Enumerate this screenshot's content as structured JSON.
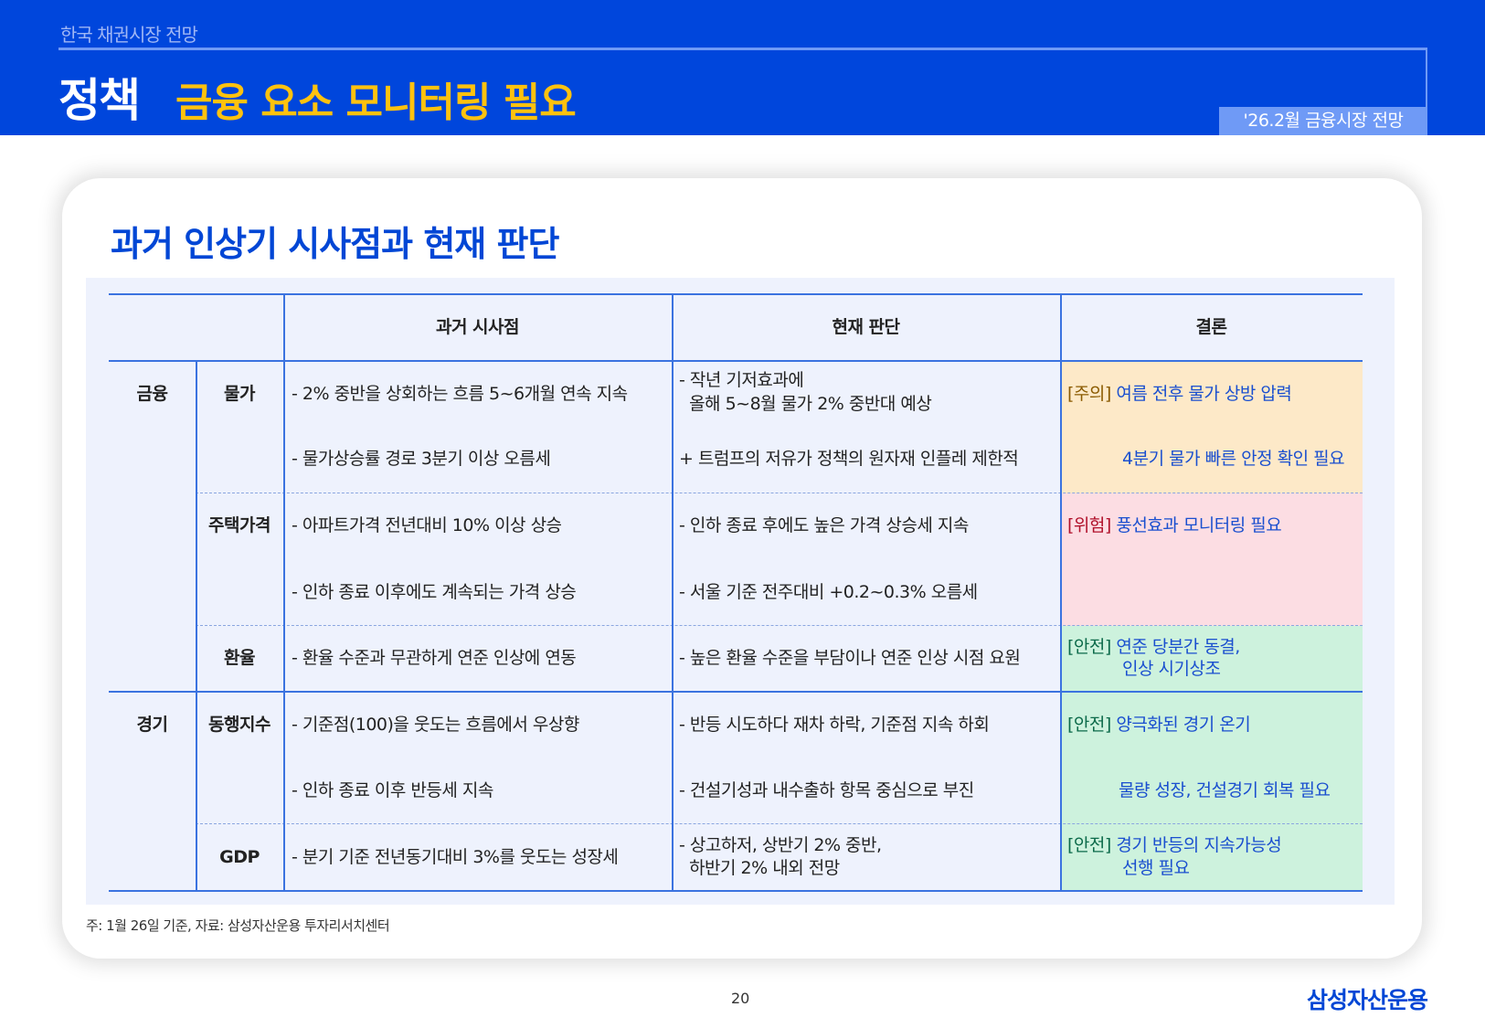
{
  "header": {
    "section": "한국 채권시장 전망",
    "title_prefix": "정책",
    "title": "금융 요소 모니터링 필요",
    "badge": "'26.2월 금융시장 전망"
  },
  "card": {
    "title": "과거 인상기 시사점과 현재 판단"
  },
  "table": {
    "headers": [
      "과거 시사점",
      "현재 판단",
      "결론"
    ],
    "groups": [
      "금융",
      "경기"
    ],
    "rows": [
      {
        "label": "물가",
        "past": [
          "- 2% 중반을 상회하는 흐름 5~6개월 연속 지속",
          "- 물가상승률 경로 3분기 이상 오름세"
        ],
        "now": [
          "- 작년 기저효과에",
          "  올해 5~8월 물가 2% 중반대 예상",
          "+ 트럼프의 저유가 정책의 원자재 인플레 제한적"
        ],
        "tag": "[주의]",
        "conclusion": [
          "여름 전후 물가 상방 압력",
          "4분기 물가 빠른 안정 확인 필요"
        ]
      },
      {
        "label": "주택가격",
        "past": [
          "- 아파트가격 전년대비 10% 이상 상승",
          "- 인하 종료 이후에도 계속되는 가격 상승"
        ],
        "now": [
          "- 인하 종료 후에도 높은 가격 상승세 지속",
          "- 서울 기준 전주대비 +0.2~0.3% 오름세"
        ],
        "tag": "[위험]",
        "conclusion": [
          "풍선효과 모니터링 필요"
        ]
      },
      {
        "label": "환율",
        "past": [
          "- 환율 수준과 무관하게 연준 인상에 연동"
        ],
        "now": [
          "- 높은 환율 수준을 부담이나 연준 인상 시점 요원"
        ],
        "tag": "[안전]",
        "conclusion": [
          "연준 당분간 동결,",
          "인상 시기상조"
        ]
      },
      {
        "label": "동행지수",
        "past": [
          "- 기준점(100)을 웃도는 흐름에서 우상향",
          "- 인하 종료 이후 반등세 지속"
        ],
        "now": [
          "- 반등 시도하다 재차 하락, 기준점 지속 하회",
          "- 건설기성과 내수출하 항목 중심으로 부진"
        ],
        "tag": "[안전]",
        "conclusion": [
          "양극화된 경기 온기",
          "물량 성장, 건설경기 회복 필요"
        ]
      },
      {
        "label": "GDP",
        "past": [
          "- 분기 기준 전년동기대비 3%를 웃도는 성장세"
        ],
        "now": [
          "- 상고하저, 상반기 2% 중반,",
          "  하반기 2% 내외 전망"
        ],
        "tag": "[안전]",
        "conclusion": [
          "경기 반등의 지속가능성",
          "선행 필요"
        ]
      }
    ]
  },
  "colors": {
    "brand": "#0046dc",
    "caution": "#fde9c8",
    "danger": "#fcdde3",
    "safe": "#cdf2dd"
  },
  "footnote": "주: 1월 26일 기준, 자료: 삼성자산운용 투자리서치센터",
  "page_number": "20",
  "logo": "삼성자산운용"
}
